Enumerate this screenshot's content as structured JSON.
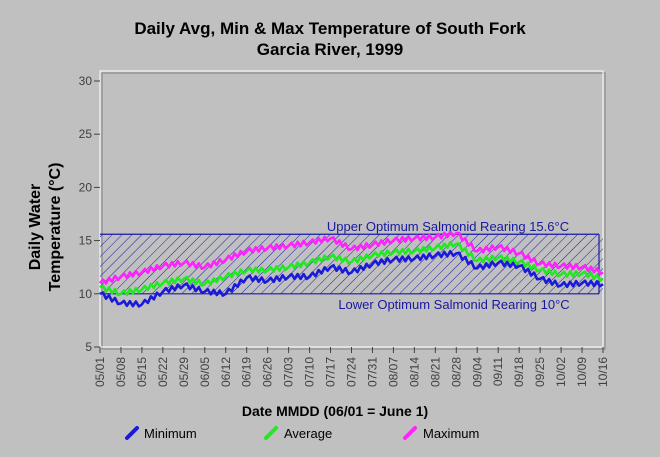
{
  "chart_data": {
    "type": "line",
    "title": "Daily Avg, Min & Max Temperature of South Fork",
    "subtitle": "Garcia River, 1999",
    "ylabel_line1": "Daily Water",
    "ylabel_line2": "Temperature (°C)",
    "xlabel": "Date MMDD (06/01 = June 1)",
    "ylim": [
      5,
      30
    ],
    "yticks": [
      "5",
      "10",
      "15",
      "20",
      "25",
      "30"
    ],
    "xticks": [
      "05/01",
      "05/08",
      "05/15",
      "05/22",
      "05/29",
      "06/05",
      "06/12",
      "06/19",
      "06/26",
      "07/03",
      "07/10",
      "07/17",
      "07/24",
      "07/31",
      "08/07",
      "08/14",
      "08/21",
      "08/28",
      "09/04",
      "09/11",
      "09/18",
      "09/25",
      "10/02",
      "10/09",
      "10/16"
    ],
    "x_start": "05/01",
    "x_end": "10/16",
    "band": {
      "upper_value": 15.6,
      "lower_value": 10,
      "upper_label": "Upper Optimum Salmonid Rearing 15.6°C",
      "lower_label": "Lower Optimum Salmonid Rearing 10°C",
      "color": "#1a1aa8"
    },
    "series": [
      {
        "name": "Minimum",
        "color": "#1a1ad8",
        "week_values": [
          10.0,
          9.1,
          9.0,
          10.2,
          10.8,
          10.2,
          10.0,
          11.5,
          11.2,
          11.6,
          11.6,
          12.5,
          12.0,
          12.8,
          13.2,
          13.3,
          13.6,
          13.8,
          12.4,
          12.9,
          12.6,
          11.4,
          10.8,
          11.0,
          10.9
        ]
      },
      {
        "name": "Average",
        "color": "#22e822",
        "week_values": [
          10.6,
          10.0,
          10.4,
          11.0,
          11.4,
          10.9,
          11.6,
          12.2,
          12.2,
          12.5,
          12.9,
          13.5,
          13.0,
          13.6,
          13.9,
          14.0,
          14.3,
          14.7,
          13.1,
          13.4,
          13.0,
          12.2,
          11.8,
          11.9,
          11.4
        ]
      },
      {
        "name": "Maximum",
        "color": "#ff22ff",
        "week_values": [
          11.0,
          11.6,
          12.0,
          12.6,
          12.9,
          12.5,
          13.2,
          14.0,
          14.3,
          14.5,
          14.8,
          15.2,
          14.2,
          14.6,
          15.0,
          15.2,
          15.3,
          15.7,
          14.0,
          14.4,
          13.8,
          12.8,
          12.6,
          12.5,
          12.0
        ]
      }
    ],
    "grid": false,
    "legend_position": "bottom"
  }
}
